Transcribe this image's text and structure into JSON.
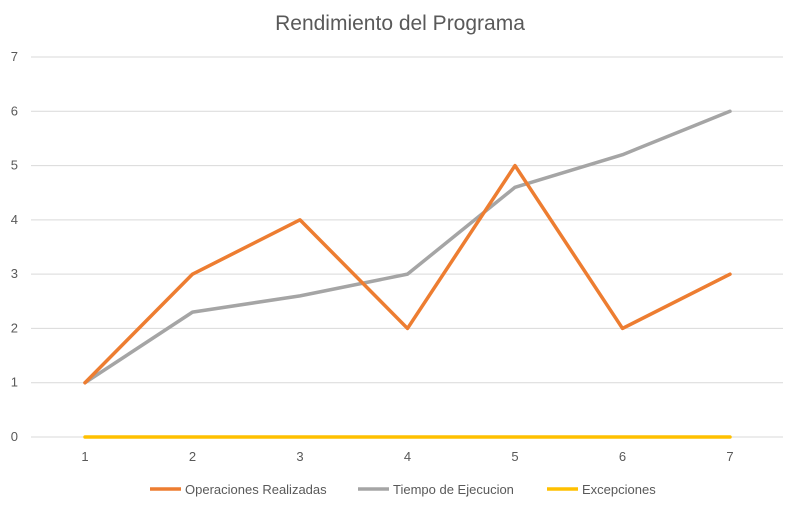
{
  "chart_data": {
    "type": "line",
    "title": "Rendimiento del Programa",
    "xlabel": "",
    "ylabel": "",
    "x": [
      "1",
      "2",
      "3",
      "4",
      "5",
      "6",
      "7"
    ],
    "ylim": [
      0,
      7
    ],
    "y_ticks": [
      "0",
      "1",
      "2",
      "3",
      "4",
      "5",
      "6",
      "7"
    ],
    "grid": true,
    "legend_position": "bottom",
    "series": [
      {
        "name": "Operaciones Realizadas",
        "color": "#ED7D31",
        "values": [
          1,
          3,
          4,
          2,
          5,
          2,
          3
        ]
      },
      {
        "name": "Tiempo de Ejecucion",
        "color": "#A5A5A5",
        "values": [
          1,
          2.3,
          2.6,
          3,
          4.6,
          5.2,
          6
        ]
      },
      {
        "name": "Excepciones",
        "color": "#FFC000",
        "values": [
          0,
          0,
          0,
          0,
          0,
          0,
          0
        ]
      }
    ]
  }
}
